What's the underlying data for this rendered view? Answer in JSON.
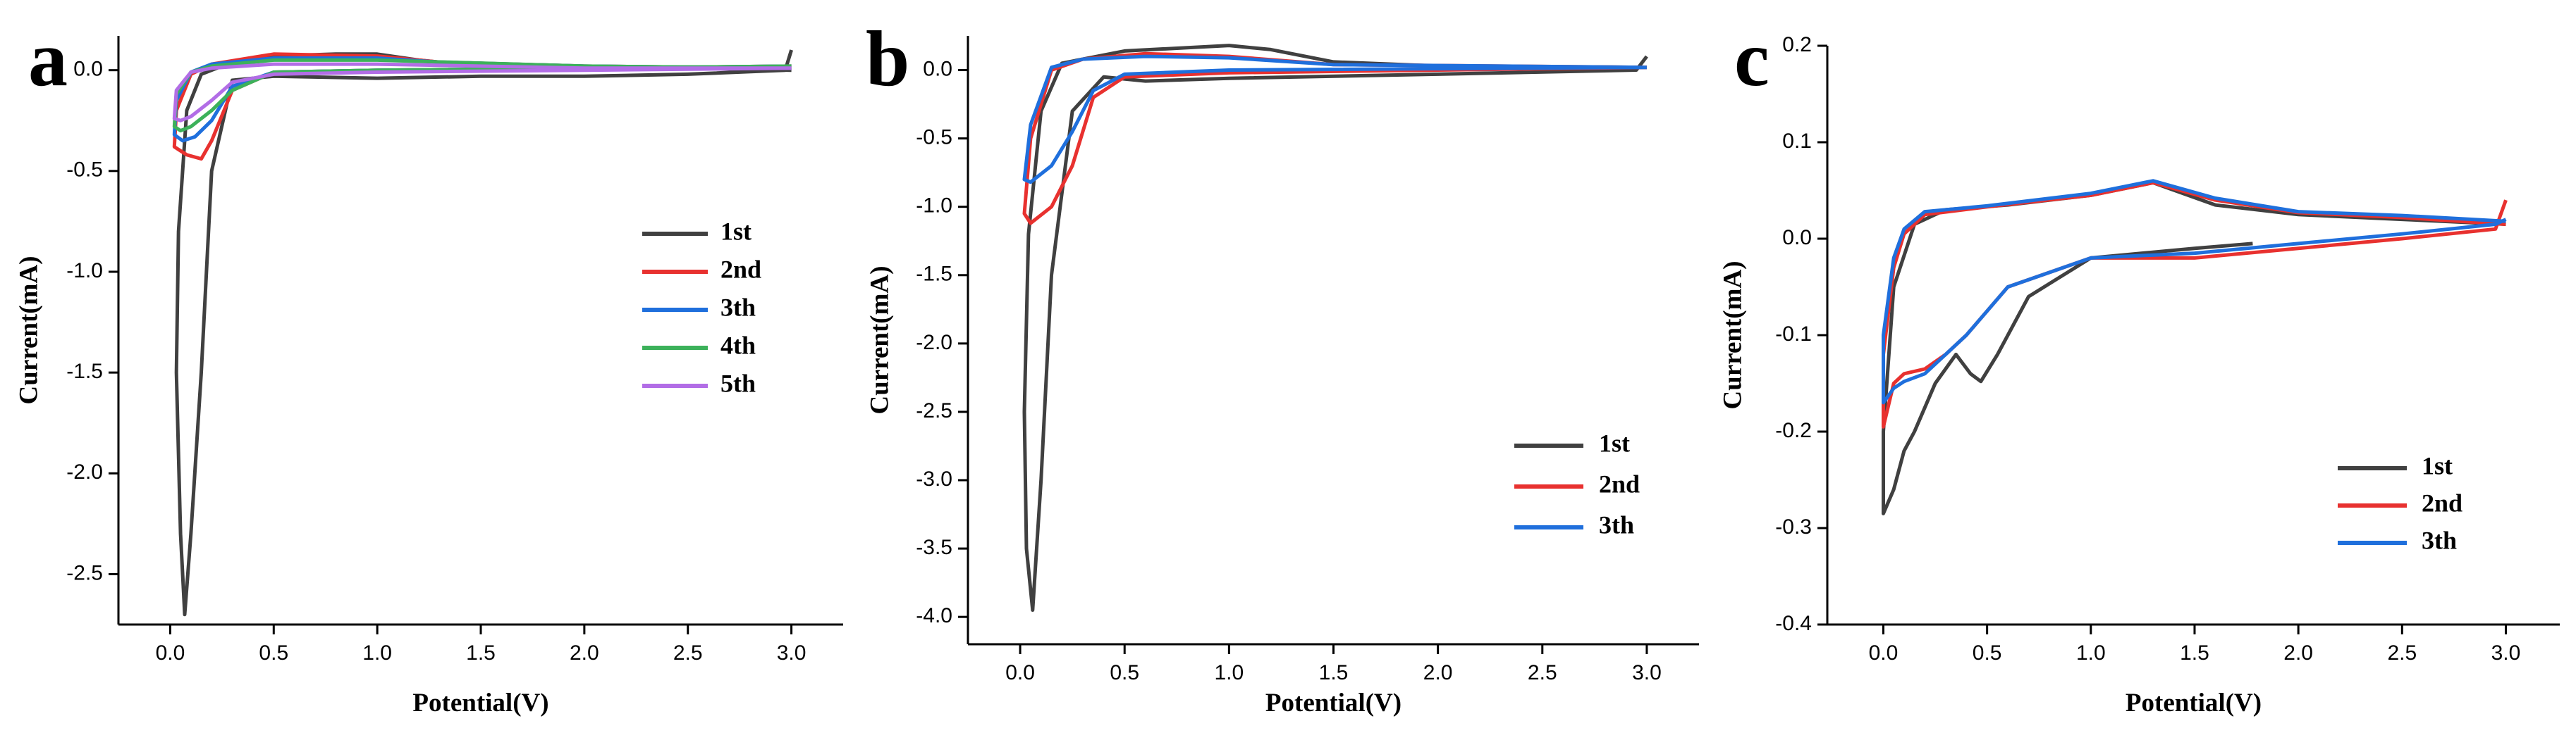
{
  "chart_data": [
    {
      "type": "line",
      "panel_label": "a",
      "xlabel": "Potential(V)",
      "ylabel": "Current(mA)",
      "xlim": [
        -0.25,
        3.25
      ],
      "ylim": [
        -2.75,
        0.17
      ],
      "xticks": [
        {
          "value": 0,
          "label": "0.0"
        },
        0.5,
        {
          "value": 1,
          "label": "1.0"
        },
        1.5,
        {
          "value": 2,
          "label": "2.0"
        },
        2.5,
        {
          "value": 3,
          "label": "3.0"
        }
      ],
      "yticks": [
        {
          "value": 0,
          "label": "0.0"
        },
        -0.5,
        {
          "value": -1,
          "label": "-1.0"
        },
        -1.5,
        {
          "value": -2,
          "label": "-2.0"
        },
        -2.5
      ],
      "series": [
        {
          "name": "1st",
          "color": "#404040",
          "x": [
            3.0,
            2.97,
            2.5,
            2.0,
            1.5,
            1.0,
            0.5,
            0.3,
            0.2,
            0.15,
            0.1,
            0.07,
            0.05,
            0.03,
            0.04,
            0.08,
            0.15,
            0.3,
            0.5,
            0.8,
            1.0,
            1.2,
            1.5,
            2.0,
            2.5,
            3.0
          ],
          "values": [
            0.1,
            0.0,
            -0.02,
            -0.03,
            -0.03,
            -0.04,
            -0.03,
            -0.05,
            -0.5,
            -1.5,
            -2.3,
            -2.7,
            -2.3,
            -1.5,
            -0.8,
            -0.2,
            -0.02,
            0.04,
            0.07,
            0.08,
            0.08,
            0.05,
            0.02,
            0.01,
            0.01,
            0.0
          ]
        },
        {
          "name": "2nd",
          "color": "#e8312f",
          "x": [
            3.0,
            2.0,
            1.0,
            0.5,
            0.3,
            0.2,
            0.15,
            0.08,
            0.02,
            0.03,
            0.1,
            0.2,
            0.5,
            1.0,
            1.3,
            2.0,
            3.0
          ],
          "values": [
            0.02,
            0.01,
            0.0,
            -0.01,
            -0.1,
            -0.35,
            -0.44,
            -0.42,
            -0.38,
            -0.2,
            -0.02,
            0.03,
            0.08,
            0.07,
            0.04,
            0.02,
            0.01
          ]
        },
        {
          "name": "3th",
          "color": "#1f6fdc",
          "x": [
            3.0,
            2.0,
            1.0,
            0.5,
            0.3,
            0.2,
            0.12,
            0.06,
            0.02,
            0.03,
            0.1,
            0.2,
            0.5,
            1.0,
            1.3,
            2.0,
            3.0
          ],
          "values": [
            0.02,
            0.01,
            0.0,
            -0.01,
            -0.08,
            -0.25,
            -0.33,
            -0.35,
            -0.32,
            -0.15,
            -0.01,
            0.03,
            0.06,
            0.06,
            0.04,
            0.02,
            0.01
          ]
        },
        {
          "name": "4th",
          "color": "#3cb15a",
          "x": [
            3.0,
            2.0,
            1.0,
            0.5,
            0.3,
            0.2,
            0.1,
            0.05,
            0.02,
            0.03,
            0.1,
            0.2,
            0.5,
            1.0,
            2.0,
            3.0
          ],
          "values": [
            0.02,
            0.01,
            0.0,
            -0.01,
            -0.1,
            -0.2,
            -0.28,
            -0.3,
            -0.28,
            -0.12,
            -0.01,
            0.02,
            0.05,
            0.05,
            0.02,
            0.01
          ]
        },
        {
          "name": "5th",
          "color": "#b26de6",
          "x": [
            3.0,
            2.0,
            1.0,
            0.5,
            0.3,
            0.2,
            0.1,
            0.05,
            0.02,
            0.03,
            0.1,
            0.2,
            0.5,
            1.0,
            2.0,
            3.0
          ],
          "values": [
            0.01,
            0.0,
            -0.01,
            -0.02,
            -0.06,
            -0.15,
            -0.23,
            -0.25,
            -0.24,
            -0.1,
            -0.01,
            0.01,
            0.03,
            0.03,
            0.01,
            0.01
          ]
        }
      ]
    },
    {
      "type": "line",
      "panel_label": "b",
      "xlabel": "Potential(V)",
      "ylabel": "Current(mA)",
      "xlim": [
        -0.25,
        3.25
      ],
      "ylim": [
        -4.2,
        0.25
      ],
      "xticks": [
        {
          "value": 0,
          "label": "0.0"
        },
        0.5,
        {
          "value": 1,
          "label": "1.0"
        },
        1.5,
        {
          "value": 2,
          "label": "2.0"
        },
        2.5,
        {
          "value": 3,
          "label": "3.0"
        }
      ],
      "yticks": [
        {
          "value": 0,
          "label": "0.0"
        },
        -0.5,
        {
          "value": -1,
          "label": "-1.0"
        },
        -1.5,
        {
          "value": -2,
          "label": "-2.0"
        },
        -2.5,
        {
          "value": -3,
          "label": "-3.0"
        },
        -3.5,
        {
          "value": -4,
          "label": "-4.0"
        }
      ],
      "series": [
        {
          "name": "1st",
          "color": "#404040",
          "x": [
            3.0,
            2.95,
            2.0,
            1.0,
            0.6,
            0.4,
            0.25,
            0.15,
            0.1,
            0.06,
            0.03,
            0.02,
            0.04,
            0.1,
            0.2,
            0.5,
            1.0,
            1.2,
            1.5,
            2.0,
            3.0
          ],
          "values": [
            0.1,
            0.0,
            -0.03,
            -0.06,
            -0.08,
            -0.05,
            -0.3,
            -1.5,
            -3.0,
            -3.95,
            -3.5,
            -2.5,
            -1.2,
            -0.3,
            0.05,
            0.14,
            0.18,
            0.15,
            0.06,
            0.03,
            0.02
          ]
        },
        {
          "name": "2nd",
          "color": "#e8312f",
          "x": [
            3.0,
            2.0,
            1.0,
            0.5,
            0.35,
            0.25,
            0.15,
            0.05,
            0.02,
            0.05,
            0.15,
            0.3,
            0.6,
            1.0,
            1.5,
            3.0
          ],
          "values": [
            0.02,
            0.0,
            -0.02,
            -0.05,
            -0.2,
            -0.7,
            -1.0,
            -1.12,
            -1.05,
            -0.5,
            0.0,
            0.08,
            0.12,
            0.1,
            0.04,
            0.02
          ]
        },
        {
          "name": "3th",
          "color": "#1f6fdc",
          "x": [
            3.0,
            2.0,
            1.0,
            0.5,
            0.35,
            0.25,
            0.15,
            0.05,
            0.02,
            0.05,
            0.15,
            0.3,
            0.6,
            1.0,
            1.5,
            3.0
          ],
          "values": [
            0.02,
            0.01,
            0.0,
            -0.03,
            -0.15,
            -0.45,
            -0.7,
            -0.82,
            -0.8,
            -0.4,
            0.02,
            0.08,
            0.1,
            0.09,
            0.04,
            0.02
          ]
        }
      ]
    },
    {
      "type": "line",
      "panel_label": "c",
      "xlabel": "Potential(V)",
      "ylabel": "Current(mA)",
      "xlim": [
        -0.27,
        3.26
      ],
      "ylim": [
        -0.4,
        0.2
      ],
      "xticks": [
        {
          "value": 0,
          "label": "0.0"
        },
        0.5,
        {
          "value": 1,
          "label": "1.0"
        },
        1.5,
        {
          "value": 2,
          "label": "2.0"
        },
        2.5,
        {
          "value": 3,
          "label": "3.0"
        }
      ],
      "yticks": [
        0.2,
        0.1,
        {
          "value": 0,
          "label": "0.0"
        },
        -0.1,
        -0.2,
        -0.3,
        -0.4
      ],
      "series": [
        {
          "name": "1st",
          "color": "#404040",
          "x": [
            1.78,
            1.5,
            1.0,
            0.7,
            0.55,
            0.47,
            0.42,
            0.35,
            0.25,
            0.15,
            0.1,
            0.05,
            0.0,
            0.0,
            0.05,
            0.15,
            0.3,
            0.6,
            1.0,
            1.3,
            1.6,
            2.0,
            2.5,
            3.0
          ],
          "values": [
            -0.005,
            -0.01,
            -0.02,
            -0.06,
            -0.12,
            -0.148,
            -0.14,
            -0.12,
            -0.15,
            -0.2,
            -0.22,
            -0.26,
            -0.285,
            -0.2,
            -0.05,
            0.015,
            0.03,
            0.035,
            0.045,
            0.058,
            0.035,
            0.025,
            0.02,
            0.015
          ]
        },
        {
          "name": "2nd",
          "color": "#e8312f",
          "x": [
            3.0,
            2.95,
            2.5,
            2.0,
            1.5,
            1.0,
            0.6,
            0.4,
            0.3,
            0.2,
            0.1,
            0.05,
            0.0,
            0.0,
            0.05,
            0.1,
            0.2,
            0.5,
            1.0,
            1.3,
            1.6,
            2.0,
            2.5,
            3.0
          ],
          "values": [
            0.04,
            0.01,
            0.0,
            -0.01,
            -0.02,
            -0.02,
            -0.05,
            -0.1,
            -0.12,
            -0.135,
            -0.14,
            -0.15,
            -0.195,
            -0.12,
            -0.03,
            0.005,
            0.025,
            0.033,
            0.045,
            0.058,
            0.04,
            0.027,
            0.022,
            0.015
          ]
        },
        {
          "name": "3th",
          "color": "#1f6fdc",
          "x": [
            3.0,
            2.95,
            2.5,
            2.0,
            1.5,
            1.0,
            0.6,
            0.4,
            0.3,
            0.2,
            0.1,
            0.05,
            0.0,
            0.0,
            0.05,
            0.1,
            0.2,
            0.5,
            1.0,
            1.3,
            1.6,
            2.0,
            2.5,
            3.0
          ],
          "values": [
            0.02,
            0.015,
            0.005,
            -0.005,
            -0.015,
            -0.02,
            -0.05,
            -0.1,
            -0.12,
            -0.14,
            -0.148,
            -0.155,
            -0.17,
            -0.1,
            -0.02,
            0.01,
            0.028,
            0.034,
            0.047,
            0.06,
            0.042,
            0.028,
            0.024,
            0.018
          ]
        }
      ]
    }
  ]
}
